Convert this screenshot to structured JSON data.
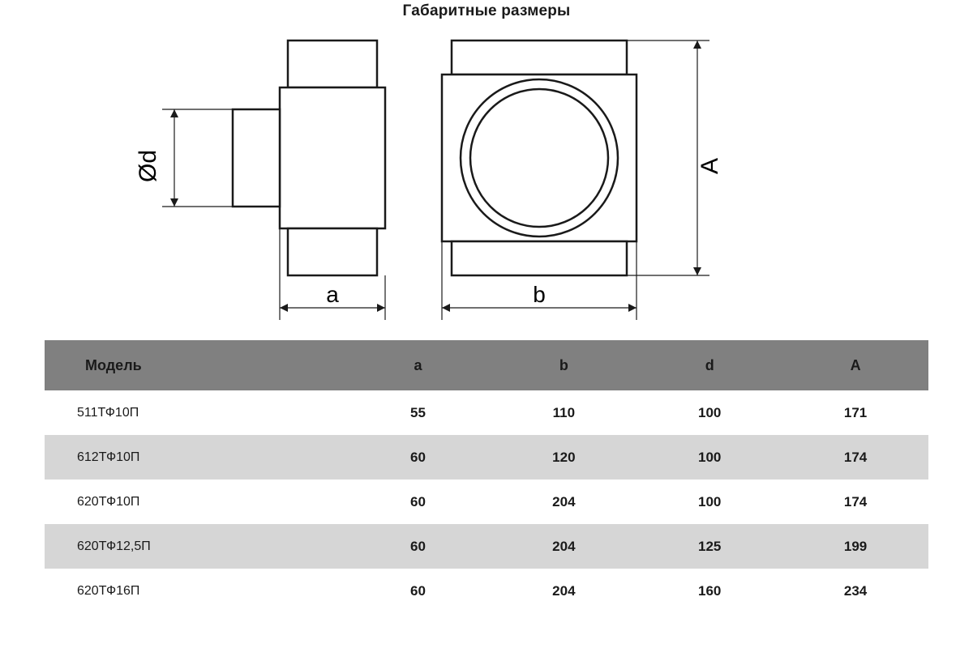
{
  "title": "Габаритные размеры",
  "diagram": {
    "labels": {
      "d": "Ød",
      "a": "a",
      "b": "b",
      "A": "A"
    },
    "stroke": "#1a1a1a",
    "stroke_width": 2.5,
    "thin_stroke_width": 1.2
  },
  "table": {
    "header_bg": "#808080",
    "stripe_bg": "#d6d6d6",
    "columns": [
      "Модель",
      "a",
      "b",
      "d",
      "A"
    ],
    "rows": [
      {
        "cells": [
          "511ТФ10П",
          "55",
          "110",
          "100",
          "171"
        ],
        "stripe": false
      },
      {
        "cells": [
          "612ТФ10П",
          "60",
          "120",
          "100",
          "174"
        ],
        "stripe": true
      },
      {
        "cells": [
          "620ТФ10П",
          "60",
          "204",
          "100",
          "174"
        ],
        "stripe": false
      },
      {
        "cells": [
          "620ТФ12,5П",
          "60",
          "204",
          "125",
          "199"
        ],
        "stripe": true
      },
      {
        "cells": [
          "620ТФ16П",
          "60",
          "204",
          "160",
          "234"
        ],
        "stripe": false
      }
    ]
  }
}
